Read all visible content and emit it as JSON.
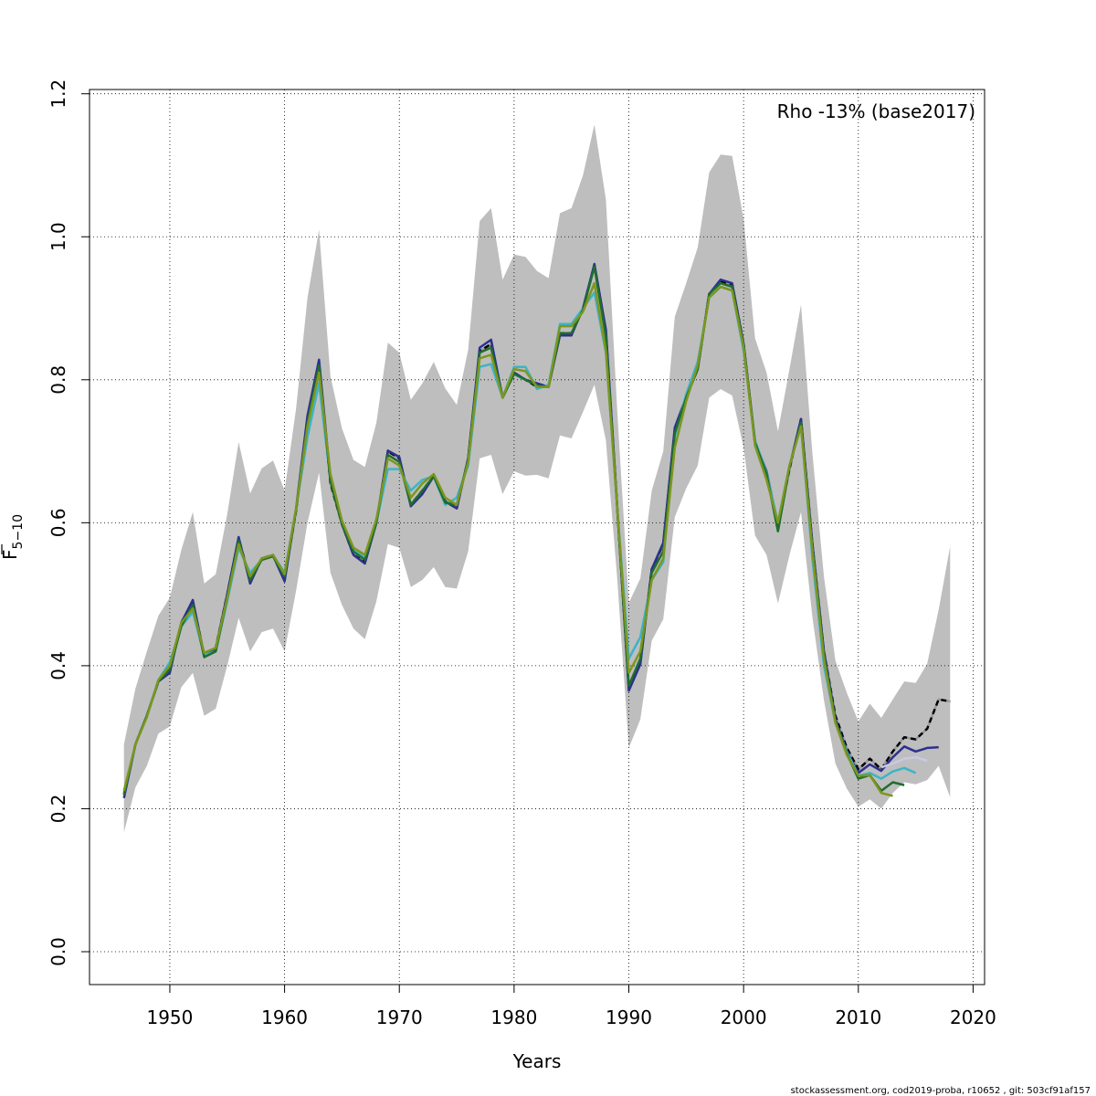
{
  "chart_data": {
    "type": "line",
    "annotation": "Rho -13% (base2017)",
    "xlabel": "Years",
    "ylabel": "F",
    "ylabel_sub": "5−10",
    "xlim": [
      1943,
      2021
    ],
    "ylim": [
      -0.046,
      1.206
    ],
    "x_ticks": [
      1950,
      1960,
      1970,
      1980,
      1990,
      2000,
      2010,
      2020
    ],
    "y_ticks": [
      0.0,
      0.2,
      0.4,
      0.6,
      0.8,
      1.0,
      1.2
    ],
    "x_tick_labels": [
      "1950",
      "1960",
      "1970",
      "1980",
      "1990",
      "2000",
      "2010",
      "2020"
    ],
    "y_tick_labels": [
      "0.0",
      "0.2",
      "0.4",
      "0.6",
      "0.8",
      "1.0",
      "1.2"
    ],
    "grid": true,
    "footer": "stockassessment.org, cod2019-proba, r10652 , git: 503cf91af157",
    "band_color": "#bebebe",
    "confidence_band": {
      "x": [
        1946,
        1947,
        1948,
        1949,
        1950,
        1951,
        1952,
        1953,
        1954,
        1955,
        1956,
        1957,
        1958,
        1959,
        1960,
        1961,
        1962,
        1963,
        1964,
        1965,
        1966,
        1967,
        1968,
        1969,
        1970,
        1971,
        1972,
        1973,
        1974,
        1975,
        1976,
        1977,
        1978,
        1979,
        1980,
        1981,
        1982,
        1983,
        1984,
        1985,
        1986,
        1987,
        1988,
        1989,
        1990,
        1991,
        1992,
        1993,
        1994,
        1995,
        1996,
        1997,
        1998,
        1999,
        2000,
        2001,
        2002,
        2003,
        2004,
        2005,
        2006,
        2007,
        2008,
        2009,
        2010,
        2011,
        2012,
        2013,
        2014,
        2015,
        2016,
        2017,
        2018
      ],
      "lower": [
        0.167,
        0.23,
        0.26,
        0.305,
        0.315,
        0.37,
        0.39,
        0.33,
        0.34,
        0.4,
        0.467,
        0.42,
        0.447,
        0.452,
        0.42,
        0.505,
        0.6,
        0.67,
        0.53,
        0.485,
        0.452,
        0.437,
        0.49,
        0.57,
        0.565,
        0.51,
        0.52,
        0.538,
        0.51,
        0.508,
        0.56,
        0.69,
        0.695,
        0.64,
        0.672,
        0.666,
        0.667,
        0.662,
        0.722,
        0.718,
        0.755,
        0.793,
        0.715,
        0.52,
        0.285,
        0.325,
        0.435,
        0.465,
        0.608,
        0.648,
        0.68,
        0.775,
        0.787,
        0.778,
        0.705,
        0.582,
        0.555,
        0.487,
        0.555,
        0.615,
        0.468,
        0.352,
        0.263,
        0.228,
        0.203,
        0.213,
        0.2,
        0.222,
        0.237,
        0.234,
        0.24,
        0.26,
        0.216
      ],
      "upper": [
        0.29,
        0.368,
        0.42,
        0.47,
        0.495,
        0.562,
        0.615,
        0.515,
        0.528,
        0.612,
        0.713,
        0.641,
        0.676,
        0.687,
        0.645,
        0.76,
        0.915,
        1.01,
        0.805,
        0.732,
        0.688,
        0.678,
        0.74,
        0.852,
        0.838,
        0.772,
        0.795,
        0.825,
        0.788,
        0.765,
        0.842,
        1.022,
        1.04,
        0.94,
        0.975,
        0.972,
        0.952,
        0.942,
        1.033,
        1.04,
        1.086,
        1.157,
        1.052,
        0.755,
        0.488,
        0.522,
        0.645,
        0.7,
        0.888,
        0.935,
        0.985,
        1.09,
        1.115,
        1.113,
        1.025,
        0.858,
        0.81,
        0.728,
        0.815,
        0.905,
        0.697,
        0.525,
        0.407,
        0.362,
        0.322,
        0.347,
        0.327,
        0.353,
        0.378,
        0.376,
        0.403,
        0.478,
        0.567
      ]
    },
    "series": [
      {
        "color": "#000000",
        "dashed": true,
        "x_start": 1946,
        "values": [
          0.22,
          0.29,
          0.33,
          0.378,
          0.395,
          0.46,
          0.49,
          0.415,
          0.425,
          0.5,
          0.578,
          0.52,
          0.55,
          0.555,
          0.522,
          0.617,
          0.745,
          0.82,
          0.655,
          0.598,
          0.555,
          0.545,
          0.6,
          0.7,
          0.69,
          0.625,
          0.645,
          0.665,
          0.63,
          0.62,
          0.69,
          0.84,
          0.85,
          0.775,
          0.81,
          0.8,
          0.79,
          0.79,
          0.865,
          0.865,
          0.9,
          0.96,
          0.865,
          0.62,
          0.368,
          0.405,
          0.535,
          0.57,
          0.73,
          0.775,
          0.815,
          0.92,
          0.937,
          0.934,
          0.85,
          0.71,
          0.67,
          0.595,
          0.675,
          0.745,
          0.57,
          0.42,
          0.33,
          0.285,
          0.255,
          0.27,
          0.255,
          0.28,
          0.3,
          0.297,
          0.312,
          0.353,
          0.35
        ]
      },
      {
        "color": "#2e2f8f",
        "dashed": false,
        "x_start": 1946,
        "values": [
          0.215,
          0.29,
          0.33,
          0.378,
          0.39,
          0.46,
          0.492,
          0.413,
          0.424,
          0.5,
          0.58,
          0.515,
          0.55,
          0.554,
          0.518,
          0.62,
          0.75,
          0.828,
          0.66,
          0.598,
          0.555,
          0.543,
          0.6,
          0.701,
          0.692,
          0.623,
          0.64,
          0.665,
          0.63,
          0.62,
          0.69,
          0.845,
          0.856,
          0.775,
          0.81,
          0.8,
          0.795,
          0.79,
          0.862,
          0.862,
          0.9,
          0.962,
          0.87,
          0.62,
          0.365,
          0.402,
          0.535,
          0.572,
          0.733,
          0.776,
          0.815,
          0.92,
          0.94,
          0.935,
          0.85,
          0.713,
          0.672,
          0.597,
          0.678,
          0.745,
          0.57,
          0.42,
          0.325,
          0.28,
          0.25,
          0.262,
          0.253,
          0.272,
          0.287,
          0.28,
          0.285,
          0.286
        ]
      },
      {
        "color": "#3db4c8",
        "dashed": false,
        "x_start": 1946,
        "values": [
          0.22,
          0.29,
          0.33,
          0.38,
          0.405,
          0.455,
          0.475,
          0.415,
          0.42,
          0.49,
          0.565,
          0.53,
          0.548,
          0.555,
          0.53,
          0.62,
          0.72,
          0.795,
          0.66,
          0.6,
          0.565,
          0.55,
          0.6,
          0.675,
          0.675,
          0.645,
          0.66,
          0.665,
          0.625,
          0.635,
          0.68,
          0.818,
          0.822,
          0.775,
          0.818,
          0.818,
          0.787,
          0.793,
          0.878,
          0.878,
          0.9,
          0.922,
          0.838,
          0.62,
          0.41,
          0.44,
          0.52,
          0.545,
          0.72,
          0.78,
          0.825,
          0.915,
          0.93,
          0.925,
          0.84,
          0.715,
          0.67,
          0.6,
          0.68,
          0.735,
          0.55,
          0.4,
          0.32,
          0.28,
          0.246,
          0.25,
          0.242,
          0.252,
          0.257,
          0.25
        ]
      },
      {
        "color": "#c8c8e6",
        "dashed": false,
        "x_start": 2012,
        "values": [
          0.258,
          0.263,
          0.27,
          0.272,
          0.267
        ]
      },
      {
        "color": "#1e6e2d",
        "dashed": false,
        "x_start": 1946,
        "values": [
          0.22,
          0.29,
          0.33,
          0.378,
          0.395,
          0.455,
          0.485,
          0.412,
          0.42,
          0.495,
          0.575,
          0.52,
          0.548,
          0.553,
          0.525,
          0.618,
          0.74,
          0.82,
          0.658,
          0.598,
          0.56,
          0.548,
          0.6,
          0.695,
          0.685,
          0.625,
          0.645,
          0.665,
          0.628,
          0.625,
          0.688,
          0.838,
          0.845,
          0.775,
          0.808,
          0.8,
          0.792,
          0.79,
          0.865,
          0.865,
          0.898,
          0.958,
          0.86,
          0.618,
          0.372,
          0.41,
          0.53,
          0.56,
          0.725,
          0.775,
          0.815,
          0.92,
          0.935,
          0.93,
          0.848,
          0.712,
          0.668,
          0.588,
          0.678,
          0.74,
          0.565,
          0.415,
          0.323,
          0.277,
          0.242,
          0.247,
          0.225,
          0.237,
          0.233
        ]
      },
      {
        "color": "#7d961e",
        "dashed": false,
        "x_start": 1946,
        "values": [
          0.225,
          0.29,
          0.328,
          0.38,
          0.4,
          0.46,
          0.48,
          0.418,
          0.425,
          0.495,
          0.57,
          0.525,
          0.55,
          0.555,
          0.528,
          0.62,
          0.735,
          0.81,
          0.668,
          0.603,
          0.565,
          0.555,
          0.605,
          0.69,
          0.68,
          0.635,
          0.655,
          0.668,
          0.635,
          0.625,
          0.685,
          0.83,
          0.835,
          0.775,
          0.815,
          0.812,
          0.79,
          0.79,
          0.875,
          0.875,
          0.895,
          0.935,
          0.84,
          0.62,
          0.39,
          0.42,
          0.52,
          0.55,
          0.705,
          0.77,
          0.82,
          0.915,
          0.93,
          0.925,
          0.845,
          0.708,
          0.66,
          0.6,
          0.68,
          0.735,
          0.56,
          0.41,
          0.32,
          0.275,
          0.246,
          0.247,
          0.222,
          0.218
        ]
      }
    ]
  }
}
